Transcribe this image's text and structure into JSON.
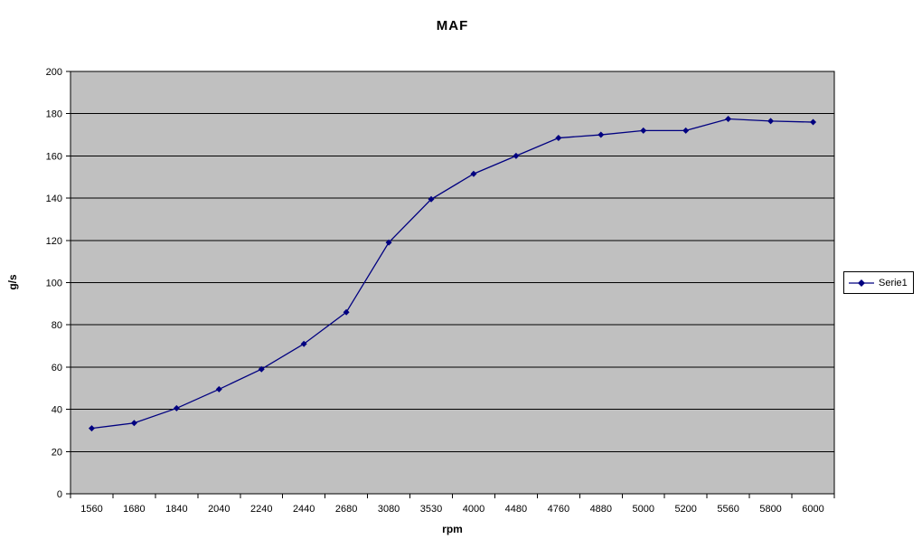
{
  "chart_data": {
    "type": "line",
    "title": "MAF",
    "xlabel": "rpm",
    "ylabel": "g/s",
    "categories": [
      1560,
      1680,
      1840,
      2040,
      2240,
      2440,
      2680,
      3080,
      3530,
      4000,
      4480,
      4760,
      4880,
      5000,
      5200,
      5560,
      5800,
      6000
    ],
    "series": [
      {
        "name": "Serie1",
        "values": [
          31,
          33.5,
          40.5,
          49.5,
          59,
          71,
          86,
          119,
          139.5,
          151.5,
          160,
          168.5,
          170,
          172,
          172,
          177.5,
          176.5,
          176
        ]
      }
    ],
    "ylim": [
      0,
      200
    ],
    "ytick_step": 20,
    "grid": true,
    "legend_position": "right",
    "marker": "diamond",
    "colors": {
      "series_line": "#000080",
      "plot_background": "#C0C0C0",
      "gridline": "#000000",
      "axis_line": "#000000",
      "text": "#000000",
      "legend_background": "#FFFFFF",
      "legend_border": "#000000",
      "page_background": "#FFFFFF"
    }
  }
}
